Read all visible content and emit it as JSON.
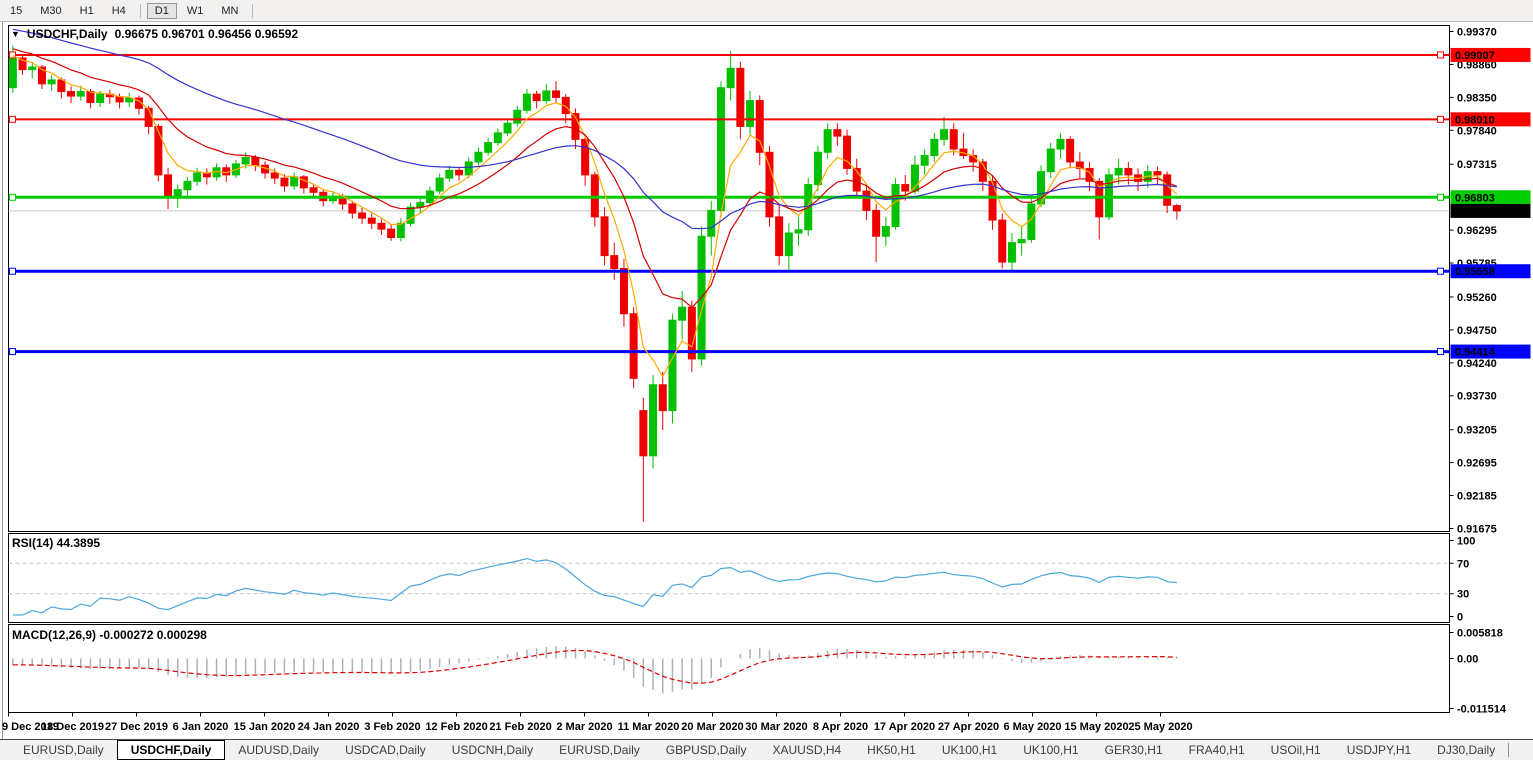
{
  "toolbar": {
    "buttons": [
      "15",
      "M30",
      "H1",
      "H4",
      "D1",
      "W1",
      "MN"
    ],
    "active": "D1"
  },
  "chart_data": {
    "type": "candlestick",
    "header": {
      "dropdown_icon": "▼",
      "symbol_label": "USDCHF,Daily",
      "ohlc_text": "0.96675 0.96701 0.96456 0.96592"
    },
    "ohlc_display": {
      "open": 0.96675,
      "high": 0.96701,
      "low": 0.96456,
      "close": 0.96592
    },
    "x_labels": [
      "9 Dec 2019",
      "18 Dec 2019",
      "27 Dec 2019",
      "6 Jan 2020",
      "15 Jan 2020",
      "24 Jan 2020",
      "3 Feb 2020",
      "12 Feb 2020",
      "21 Feb 2020",
      "2 Mar 2020",
      "11 Mar 2020",
      "20 Mar 2020",
      "30 Mar 2020",
      "8 Apr 2020",
      "17 Apr 2020",
      "27 Apr 2020",
      "6 May 2020",
      "15 May 2020",
      "25 May 2020"
    ],
    "y_ticks": [
      "0.99370",
      "0.98860",
      "0.98350",
      "0.97840",
      "0.97315",
      "0.96295",
      "0.95785",
      "0.95260",
      "0.94750",
      "0.94240",
      "0.93730",
      "0.93205",
      "0.92695",
      "0.92185",
      "0.91675"
    ],
    "price_axis_range": {
      "top": 0.99463,
      "bottom": 0.91628
    },
    "horizontal_lines": [
      {
        "value": 0.99007,
        "label": "0.99007",
        "color": "#FF0000",
        "width": 2,
        "text_color": "#FFFFFF"
      },
      {
        "value": 0.9801,
        "label": "0.98010",
        "color": "#FF0000",
        "width": 2,
        "text_color": "#FFFFFF"
      },
      {
        "value": 0.96803,
        "label": "0.96803",
        "color": "#00CC00",
        "width": 3,
        "text_color": "#000000"
      },
      {
        "value": 0.95658,
        "label": "0.95658",
        "color": "#0000FF",
        "width": 3,
        "text_color": "#FFFFFF"
      },
      {
        "value": 0.94414,
        "label": "0.94414",
        "color": "#0000FF",
        "width": 3,
        "text_color": "#FFFFFF"
      }
    ],
    "current_price": {
      "value": 0.96592,
      "label": "0.96592",
      "line_color": "#C8C8C8",
      "badge_color": "#000000",
      "text_color": "#FFFFFF"
    },
    "colors": {
      "bull": "#00C000",
      "bear": "#EE0000"
    },
    "moving_averages": [
      {
        "name": "ma-fast",
        "period": 5,
        "color": "#FFAA00"
      },
      {
        "name": "ma-mid",
        "period": 13,
        "color": "#D40000"
      },
      {
        "name": "ma-slow",
        "period": 40,
        "color": "#3333CC"
      }
    ],
    "indicators": {
      "rsi": {
        "label": "RSI(14) 44.3895",
        "period": 14,
        "value": 44.3895,
        "levels": [
          70,
          30
        ],
        "axis_ticks": [
          "100",
          "70",
          "30",
          "0"
        ],
        "color": "#4DA6E0",
        "level_color": "#C4C4C4"
      },
      "macd": {
        "label": "MACD(12,26,9) -0.000272 0.000298",
        "fast": 12,
        "slow": 26,
        "signal_period": 9,
        "main_value": -0.000272,
        "signal_value": 0.000298,
        "axis_ticks": [
          "0.005818",
          "0.00",
          "-0.011514"
        ],
        "range": [
          -0.011514,
          0.005818
        ],
        "histogram_color": "#B0B0B0",
        "signal_color": "#E00000"
      }
    },
    "candles": [
      [
        0.985,
        0.9915,
        0.9842,
        0.9896
      ],
      [
        0.9896,
        0.9902,
        0.987,
        0.9878
      ],
      [
        0.9878,
        0.989,
        0.9865,
        0.9882
      ],
      [
        0.9882,
        0.9885,
        0.9848,
        0.9856
      ],
      [
        0.9856,
        0.987,
        0.9845,
        0.9862
      ],
      [
        0.9862,
        0.9866,
        0.9833,
        0.9844
      ],
      [
        0.9844,
        0.9852,
        0.9826,
        0.9837
      ],
      [
        0.9837,
        0.9853,
        0.983,
        0.9844
      ],
      [
        0.9844,
        0.9848,
        0.9818,
        0.9827
      ],
      [
        0.9827,
        0.9845,
        0.982,
        0.984
      ],
      [
        0.984,
        0.9847,
        0.9825,
        0.9836
      ],
      [
        0.9836,
        0.9841,
        0.9818,
        0.9828
      ],
      [
        0.9828,
        0.9842,
        0.982,
        0.9834
      ],
      [
        0.9834,
        0.9838,
        0.9808,
        0.9818
      ],
      [
        0.9818,
        0.9822,
        0.9778,
        0.979
      ],
      [
        0.979,
        0.9794,
        0.9705,
        0.9715
      ],
      [
        0.9715,
        0.9726,
        0.9662,
        0.968
      ],
      [
        0.968,
        0.97,
        0.9664,
        0.9692
      ],
      [
        0.9692,
        0.9712,
        0.9682,
        0.9705
      ],
      [
        0.9705,
        0.9726,
        0.9698,
        0.9718
      ],
      [
        0.9718,
        0.9725,
        0.97,
        0.9712
      ],
      [
        0.9712,
        0.9733,
        0.9706,
        0.9726
      ],
      [
        0.9726,
        0.9731,
        0.9704,
        0.9715
      ],
      [
        0.9715,
        0.9738,
        0.971,
        0.9732
      ],
      [
        0.9732,
        0.975,
        0.9725,
        0.9742
      ],
      [
        0.9742,
        0.9746,
        0.9721,
        0.973
      ],
      [
        0.973,
        0.9736,
        0.9709,
        0.9718
      ],
      [
        0.9718,
        0.9725,
        0.9701,
        0.971
      ],
      [
        0.971,
        0.9716,
        0.9689,
        0.9698
      ],
      [
        0.9698,
        0.9719,
        0.9692,
        0.9712
      ],
      [
        0.9712,
        0.9715,
        0.9686,
        0.9695
      ],
      [
        0.9695,
        0.9701,
        0.9679,
        0.9688
      ],
      [
        0.9688,
        0.9693,
        0.9666,
        0.9675
      ],
      [
        0.9675,
        0.969,
        0.967,
        0.9682
      ],
      [
        0.9682,
        0.9686,
        0.9661,
        0.967
      ],
      [
        0.967,
        0.9675,
        0.9647,
        0.9656
      ],
      [
        0.9656,
        0.9664,
        0.9639,
        0.9648
      ],
      [
        0.9648,
        0.9655,
        0.9631,
        0.964
      ],
      [
        0.964,
        0.9646,
        0.9622,
        0.9631
      ],
      [
        0.9631,
        0.9638,
        0.9613,
        0.9618
      ],
      [
        0.9618,
        0.9648,
        0.9612,
        0.964
      ],
      [
        0.964,
        0.9672,
        0.9635,
        0.9665
      ],
      [
        0.9665,
        0.9679,
        0.9655,
        0.9672
      ],
      [
        0.9672,
        0.9697,
        0.9666,
        0.969
      ],
      [
        0.969,
        0.9717,
        0.9685,
        0.971
      ],
      [
        0.971,
        0.9729,
        0.9704,
        0.9722
      ],
      [
        0.9722,
        0.9727,
        0.9706,
        0.9715
      ],
      [
        0.9715,
        0.9742,
        0.971,
        0.9735
      ],
      [
        0.9735,
        0.9757,
        0.973,
        0.975
      ],
      [
        0.975,
        0.9772,
        0.9745,
        0.9765
      ],
      [
        0.9765,
        0.9787,
        0.976,
        0.978
      ],
      [
        0.978,
        0.9802,
        0.9775,
        0.9795
      ],
      [
        0.9795,
        0.9822,
        0.979,
        0.9815
      ],
      [
        0.9815,
        0.9848,
        0.981,
        0.984
      ],
      [
        0.984,
        0.9845,
        0.9818,
        0.983
      ],
      [
        0.983,
        0.9856,
        0.9825,
        0.9845
      ],
      [
        0.9845,
        0.986,
        0.9826,
        0.9835
      ],
      [
        0.9835,
        0.984,
        0.9795,
        0.981
      ],
      [
        0.981,
        0.9818,
        0.9755,
        0.977
      ],
      [
        0.977,
        0.9778,
        0.9698,
        0.9715
      ],
      [
        0.9715,
        0.972,
        0.9635,
        0.965
      ],
      [
        0.965,
        0.9665,
        0.9575,
        0.959
      ],
      [
        0.959,
        0.961,
        0.9552,
        0.957
      ],
      [
        0.957,
        0.9585,
        0.948,
        0.95
      ],
      [
        0.95,
        0.951,
        0.9385,
        0.94
      ],
      [
        0.935,
        0.937,
        0.9178,
        0.928
      ],
      [
        0.928,
        0.9405,
        0.926,
        0.939
      ],
      [
        0.939,
        0.941,
        0.932,
        0.935
      ],
      [
        0.935,
        0.95,
        0.933,
        0.949
      ],
      [
        0.949,
        0.9535,
        0.946,
        0.951
      ],
      [
        0.951,
        0.952,
        0.941,
        0.943
      ],
      [
        0.943,
        0.9635,
        0.942,
        0.962
      ],
      [
        0.962,
        0.9675,
        0.959,
        0.966
      ],
      [
        0.966,
        0.986,
        0.965,
        0.985
      ],
      [
        0.985,
        0.9907,
        0.983,
        0.988
      ],
      [
        0.988,
        0.989,
        0.977,
        0.979
      ],
      [
        0.979,
        0.9845,
        0.9775,
        0.983
      ],
      [
        0.983,
        0.9838,
        0.973,
        0.975
      ],
      [
        0.975,
        0.976,
        0.9635,
        0.965
      ],
      [
        0.965,
        0.967,
        0.9575,
        0.959
      ],
      [
        0.959,
        0.964,
        0.9565,
        0.9625
      ],
      [
        0.9625,
        0.965,
        0.9605,
        0.963
      ],
      [
        0.963,
        0.971,
        0.962,
        0.97
      ],
      [
        0.97,
        0.976,
        0.969,
        0.975
      ],
      [
        0.975,
        0.9795,
        0.974,
        0.9785
      ],
      [
        0.9785,
        0.9795,
        0.976,
        0.9775
      ],
      [
        0.9775,
        0.9785,
        0.9715,
        0.9725
      ],
      [
        0.9725,
        0.974,
        0.968,
        0.969
      ],
      [
        0.969,
        0.97,
        0.9645,
        0.966
      ],
      [
        0.966,
        0.967,
        0.958,
        0.962
      ],
      [
        0.962,
        0.965,
        0.9605,
        0.9635
      ],
      [
        0.9635,
        0.971,
        0.963,
        0.97
      ],
      [
        0.97,
        0.9715,
        0.9675,
        0.969
      ],
      [
        0.969,
        0.9745,
        0.9685,
        0.973
      ],
      [
        0.973,
        0.9755,
        0.9715,
        0.9745
      ],
      [
        0.9745,
        0.978,
        0.9735,
        0.977
      ],
      [
        0.977,
        0.9805,
        0.976,
        0.9785
      ],
      [
        0.9785,
        0.9795,
        0.9745,
        0.9755
      ],
      [
        0.9755,
        0.978,
        0.974,
        0.9745
      ],
      [
        0.9745,
        0.9755,
        0.972,
        0.9735
      ],
      [
        0.9735,
        0.974,
        0.969,
        0.9705
      ],
      [
        0.9705,
        0.9715,
        0.963,
        0.9645
      ],
      [
        0.9645,
        0.9655,
        0.957,
        0.958
      ],
      [
        0.958,
        0.9625,
        0.9565,
        0.961
      ],
      [
        0.961,
        0.9635,
        0.959,
        0.9615
      ],
      [
        0.9615,
        0.968,
        0.961,
        0.967
      ],
      [
        0.967,
        0.973,
        0.9665,
        0.972
      ],
      [
        0.972,
        0.9765,
        0.971,
        0.9755
      ],
      [
        0.9755,
        0.978,
        0.974,
        0.977
      ],
      [
        0.977,
        0.9775,
        0.9725,
        0.9735
      ],
      [
        0.9735,
        0.975,
        0.971,
        0.9725
      ],
      [
        0.9725,
        0.9735,
        0.969,
        0.9705
      ],
      [
        0.9705,
        0.971,
        0.9615,
        0.965
      ],
      [
        0.965,
        0.9725,
        0.9645,
        0.9715
      ],
      [
        0.9715,
        0.974,
        0.97,
        0.9725
      ],
      [
        0.9725,
        0.9735,
        0.97,
        0.9715
      ],
      [
        0.9715,
        0.9725,
        0.969,
        0.9705
      ],
      [
        0.9705,
        0.973,
        0.9695,
        0.972
      ],
      [
        0.972,
        0.9728,
        0.97,
        0.9715
      ],
      [
        0.9715,
        0.972,
        0.9656,
        0.9668
      ],
      [
        0.96675,
        0.96701,
        0.96456,
        0.96592
      ]
    ]
  },
  "tabs": {
    "active_index": 1,
    "scroll_left_icon": "◄",
    "scroll_right_icon": "►",
    "items": [
      {
        "label": "EURUSD,Daily"
      },
      {
        "label": "USDCHF,Daily"
      },
      {
        "label": "AUDUSD,Daily"
      },
      {
        "label": "USDCAD,Daily"
      },
      {
        "label": "USDCNH,Daily"
      },
      {
        "label": "EURUSD,Daily"
      },
      {
        "label": "GBPUSD,Daily"
      },
      {
        "label": "XAUUSD,H4"
      },
      {
        "label": "HK50,H1"
      },
      {
        "label": "UK100,H1"
      },
      {
        "label": "UK100,H1"
      },
      {
        "label": "GER30,H1"
      },
      {
        "label": "FRA40,H1"
      },
      {
        "label": "USOil,H1"
      },
      {
        "label": "USDJPY,H1"
      },
      {
        "label": "DJ30,Daily"
      }
    ]
  }
}
